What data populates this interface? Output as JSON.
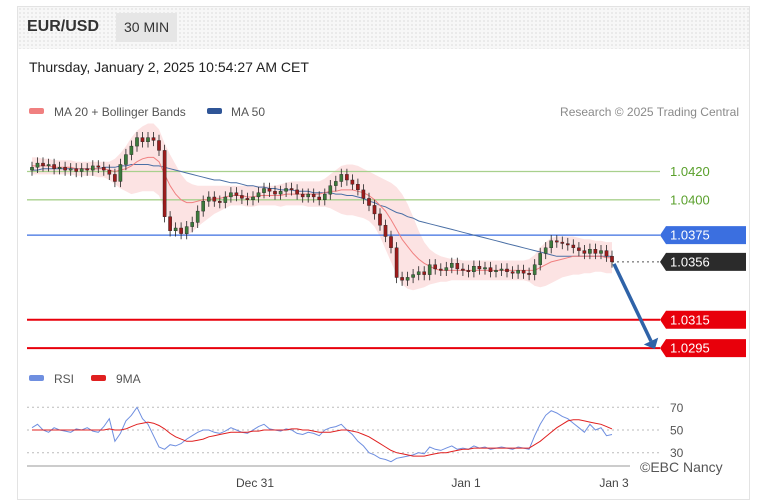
{
  "header": {
    "pair": "EUR/USD",
    "timeframe": "30 MIN",
    "timestamp": "Thursday, January 2, 2025 10:54:27 AM CET"
  },
  "watermark": "©EBC Nancy",
  "colors": {
    "bollinger_fill": "#fbdede",
    "ma20": "#f08080",
    "ma50": "#4a6fa5",
    "resistance_green": "#a8d08d",
    "blue_level": "#3b6fe0",
    "red_level": "#e8000b",
    "last_price": "#2b2b2b",
    "arrow": "#2f63a8",
    "rsi": "#6f8fe0",
    "rsi_ma": "#e02020",
    "candle_up": "#3c7a3c",
    "candle_down": "#9b1c1c"
  },
  "chart_data": [
    {
      "type": "candlestick",
      "legend": [
        {
          "name": "MA 20 + Bollinger Bands",
          "color": "#f08080"
        },
        {
          "name": "MA 50",
          "color": "#2f5597"
        }
      ],
      "credit": "Research © 2025 Trading Central",
      "price_range": [
        1.0283,
        1.0448
      ],
      "levels": [
        {
          "value": 1.042,
          "label": "1.0420",
          "style": "green-line"
        },
        {
          "value": 1.04,
          "label": "1.0400",
          "style": "green-line"
        },
        {
          "value": 1.0375,
          "label": "1.0375",
          "style": "blue-box"
        },
        {
          "value": 1.0356,
          "label": "1.0356",
          "style": "last-price"
        },
        {
          "value": 1.0315,
          "label": "1.0315",
          "style": "red-box"
        },
        {
          "value": 1.0295,
          "label": "1.0295",
          "style": "red-box"
        }
      ],
      "close": [
        1.0423,
        1.0426,
        1.0424,
        1.0425,
        1.0422,
        1.0423,
        1.0421,
        1.0422,
        1.042,
        1.0422,
        1.0421,
        1.0424,
        1.0423,
        1.0421,
        1.0418,
        1.0413,
        1.0425,
        1.0432,
        1.0438,
        1.0444,
        1.0441,
        1.0444,
        1.0442,
        1.0435,
        1.0388,
        1.0378,
        1.038,
        1.0376,
        1.0381,
        1.0384,
        1.0392,
        1.0399,
        1.0402,
        1.0399,
        1.0398,
        1.0402,
        1.0405,
        1.0403,
        1.0401,
        1.04,
        1.0402,
        1.0405,
        1.0408,
        1.0406,
        1.0404,
        1.0406,
        1.0408,
        1.0407,
        1.0404,
        1.0402,
        1.0404,
        1.0402,
        1.04,
        1.0404,
        1.041,
        1.0413,
        1.0418,
        1.0414,
        1.0411,
        1.0407,
        1.0401,
        1.0396,
        1.039,
        1.0382,
        1.0374,
        1.0366,
        1.0345,
        1.0343,
        1.0345,
        1.0347,
        1.0349,
        1.0347,
        1.0354,
        1.0351,
        1.035,
        1.0352,
        1.0355,
        1.0351,
        1.035,
        1.0349,
        1.0353,
        1.0351,
        1.0352,
        1.0349,
        1.035,
        1.0351,
        1.0349,
        1.0348,
        1.035,
        1.0348,
        1.0347,
        1.0354,
        1.0362,
        1.0366,
        1.0371,
        1.037,
        1.0369,
        1.0368,
        1.0366,
        1.0364,
        1.0362,
        1.0365,
        1.0362,
        1.0364,
        1.036,
        1.0356
      ],
      "ma20": [
        1.0424,
        1.0424,
        1.0424,
        1.0424,
        1.0423,
        1.0423,
        1.0423,
        1.0423,
        1.0422,
        1.0422,
        1.0422,
        1.0422,
        1.0422,
        1.0422,
        1.0421,
        1.042,
        1.0421,
        1.0422,
        1.0424,
        1.0427,
        1.0429,
        1.043,
        1.043,
        1.0427,
        1.0418,
        1.041,
        1.0404,
        1.04,
        1.0398,
        1.0398,
        1.0399,
        1.04,
        1.04,
        1.0401,
        1.0401,
        1.0402,
        1.0403,
        1.0403,
        1.0403,
        1.0402,
        1.0402,
        1.0403,
        1.0403,
        1.0403,
        1.0403,
        1.0403,
        1.0404,
        1.0404,
        1.0404,
        1.0404,
        1.0404,
        1.0404,
        1.0404,
        1.0405,
        1.0406,
        1.0406,
        1.0407,
        1.0407,
        1.0407,
        1.0406,
        1.0405,
        1.0403,
        1.04,
        1.0396,
        1.0392,
        1.0386,
        1.0379,
        1.0372,
        1.0367,
        1.0362,
        1.0358,
        1.0355,
        1.0353,
        1.0351,
        1.035,
        1.035,
        1.035,
        1.035,
        1.035,
        1.035,
        1.035,
        1.035,
        1.035,
        1.035,
        1.035,
        1.035,
        1.035,
        1.035,
        1.035,
        1.035,
        1.035,
        1.035,
        1.0352,
        1.0354,
        1.0356,
        1.0357,
        1.0358,
        1.0359,
        1.036,
        1.036,
        1.036,
        1.036,
        1.036,
        1.036,
        1.0359,
        1.0359
      ],
      "bb_upper": [
        1.043,
        1.043,
        1.0429,
        1.0429,
        1.0428,
        1.0428,
        1.0428,
        1.0428,
        1.0427,
        1.0427,
        1.0427,
        1.0427,
        1.0427,
        1.0427,
        1.0427,
        1.0429,
        1.0433,
        1.0438,
        1.0444,
        1.0449,
        1.0452,
        1.0454,
        1.0454,
        1.045,
        1.044,
        1.0432,
        1.0425,
        1.0418,
        1.0413,
        1.0411,
        1.041,
        1.041,
        1.041,
        1.041,
        1.041,
        1.041,
        1.041,
        1.041,
        1.041,
        1.041,
        1.041,
        1.041,
        1.041,
        1.041,
        1.041,
        1.0411,
        1.0412,
        1.0413,
        1.0413,
        1.0413,
        1.0413,
        1.0413,
        1.0413,
        1.0415,
        1.0418,
        1.0421,
        1.0424,
        1.0425,
        1.0425,
        1.0424,
        1.0422,
        1.042,
        1.0418,
        1.0416,
        1.0414,
        1.0412,
        1.0409,
        1.0404,
        1.0397,
        1.0388,
        1.0378,
        1.037,
        1.0365,
        1.0362,
        1.036,
        1.0359,
        1.0358,
        1.0358,
        1.0357,
        1.0357,
        1.0357,
        1.0357,
        1.0357,
        1.0357,
        1.0357,
        1.0357,
        1.0357,
        1.0357,
        1.0357,
        1.0357,
        1.0358,
        1.0361,
        1.0366,
        1.037,
        1.0373,
        1.0374,
        1.0374,
        1.0374,
        1.0374,
        1.0373,
        1.0372,
        1.0372,
        1.0371,
        1.0371,
        1.037,
        1.037
      ],
      "bb_lower": [
        1.0418,
        1.0418,
        1.0418,
        1.0418,
        1.0418,
        1.0418,
        1.0418,
        1.0418,
        1.0417,
        1.0417,
        1.0417,
        1.0417,
        1.0416,
        1.0416,
        1.0414,
        1.0411,
        1.0408,
        1.0406,
        1.0404,
        1.0405,
        1.0406,
        1.0406,
        1.0406,
        1.0403,
        1.0393,
        1.0384,
        1.0378,
        1.0375,
        1.0375,
        1.0377,
        1.0381,
        1.0384,
        1.0387,
        1.039,
        1.0392,
        1.0394,
        1.0396,
        1.0396,
        1.0396,
        1.0395,
        1.0395,
        1.0396,
        1.0396,
        1.0396,
        1.0396,
        1.0395,
        1.0396,
        1.0396,
        1.0396,
        1.0396,
        1.0395,
        1.0395,
        1.0395,
        1.0395,
        1.0394,
        1.0392,
        1.039,
        1.0389,
        1.0389,
        1.0388,
        1.0387,
        1.0385,
        1.0381,
        1.0374,
        1.0365,
        1.0356,
        1.0347,
        1.034,
        1.0337,
        1.0336,
        1.0337,
        1.0338,
        1.034,
        1.0341,
        1.0342,
        1.0342,
        1.0343,
        1.0343,
        1.0343,
        1.0343,
        1.0343,
        1.0343,
        1.0343,
        1.0343,
        1.0343,
        1.0343,
        1.0343,
        1.0343,
        1.0343,
        1.0343,
        1.0342,
        1.0339,
        1.0338,
        1.0339,
        1.0341,
        1.0343,
        1.0345,
        1.0346,
        1.0347,
        1.0347,
        1.0348,
        1.0348,
        1.0349,
        1.0349,
        1.0348,
        1.0348
      ],
      "ma50": [
        1.0421,
        1.0421,
        1.0422,
        1.0422,
        1.0422,
        1.0422,
        1.0422,
        1.0422,
        1.0422,
        1.0422,
        1.0422,
        1.0422,
        1.0422,
        1.0423,
        1.0423,
        1.0423,
        1.0424,
        1.0424,
        1.0425,
        1.0425,
        1.0425,
        1.0425,
        1.0424,
        1.0424,
        1.0423,
        1.0422,
        1.0421,
        1.042,
        1.0419,
        1.0418,
        1.0417,
        1.0416,
        1.0415,
        1.0414,
        1.0414,
        1.0413,
        1.0412,
        1.0412,
        1.0411,
        1.041,
        1.041,
        1.0409,
        1.0409,
        1.0408,
        1.0408,
        1.0407,
        1.0407,
        1.0407,
        1.0406,
        1.0406,
        1.0406,
        1.0405,
        1.0405,
        1.0405,
        1.0405,
        1.0404,
        1.0404,
        1.0403,
        1.0403,
        1.0402,
        1.0401,
        1.0399,
        1.0398,
        1.0396,
        1.0395,
        1.0393,
        1.0391,
        1.039,
        1.0388,
        1.0387,
        1.0385,
        1.0384,
        1.0383,
        1.0382,
        1.0381,
        1.038,
        1.0379,
        1.0378,
        1.0377,
        1.0376,
        1.0375,
        1.0374,
        1.0373,
        1.0372,
        1.0371,
        1.037,
        1.0369,
        1.0368,
        1.0367,
        1.0366,
        1.0365,
        1.0364,
        1.0363,
        1.0362,
        1.0361,
        1.036,
        1.036,
        1.036,
        1.036,
        1.036,
        1.036,
        1.036,
        1.036,
        1.036,
        1.036,
        1.036
      ],
      "forecast": {
        "from": 1.0356,
        "to": 1.0295
      }
    },
    {
      "type": "line",
      "legend": [
        {
          "name": "RSI",
          "color": "#6f8fe0"
        },
        {
          "name": "9MA",
          "color": "#e02020"
        }
      ],
      "y_ticks": [
        70,
        50,
        30
      ],
      "ylim": [
        20,
        80
      ],
      "series": [
        {
          "name": "RSI",
          "values": [
            52,
            55,
            50,
            48,
            52,
            50,
            49,
            48,
            51,
            50,
            52,
            49,
            48,
            53,
            60,
            40,
            47,
            58,
            63,
            70,
            60,
            55,
            45,
            35,
            33,
            37,
            36,
            38,
            42,
            45,
            48,
            50,
            50,
            48,
            47,
            49,
            52,
            50,
            48,
            47,
            50,
            53,
            55,
            51,
            50,
            49,
            51,
            50,
            47,
            46,
            48,
            47,
            45,
            50,
            52,
            53,
            55,
            50,
            46,
            40,
            36,
            30,
            28,
            25,
            24,
            22,
            25,
            26,
            27,
            28,
            30,
            29,
            35,
            33,
            32,
            34,
            36,
            33,
            34,
            33,
            36,
            34,
            35,
            33,
            34,
            35,
            34,
            33,
            35,
            34,
            33,
            45,
            55,
            63,
            67,
            65,
            62,
            60,
            56,
            52,
            48,
            55,
            50,
            52,
            45,
            46
          ]
        },
        {
          "name": "9MA",
          "values": [
            50,
            50,
            50,
            50,
            50,
            50,
            50,
            50,
            50,
            50,
            50,
            50,
            50,
            50,
            51,
            50,
            50,
            51,
            53,
            55,
            56,
            57,
            56,
            54,
            51,
            47,
            44,
            42,
            40,
            40,
            41,
            42,
            44,
            45,
            46,
            47,
            48,
            48,
            48,
            48,
            49,
            49,
            50,
            50,
            50,
            50,
            50,
            51,
            51,
            50,
            50,
            49,
            48,
            48,
            48,
            49,
            50,
            50,
            49,
            48,
            46,
            44,
            41,
            38,
            35,
            32,
            30,
            29,
            28,
            27,
            27,
            27,
            28,
            29,
            30,
            30,
            31,
            32,
            33,
            33,
            34,
            34,
            34,
            34,
            34,
            34,
            34,
            34,
            34,
            34,
            34,
            37,
            40,
            44,
            48,
            52,
            55,
            58,
            59,
            59,
            58,
            57,
            56,
            55,
            53,
            51
          ]
        }
      ]
    }
  ],
  "x_axis": {
    "ticks": [
      "Dec 31",
      "Jan 1",
      "Jan 3"
    ]
  }
}
